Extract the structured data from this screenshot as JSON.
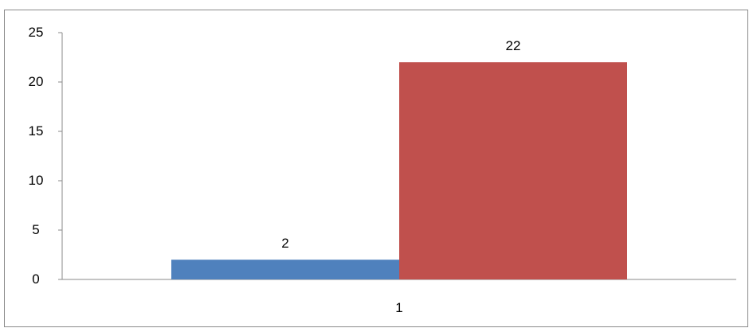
{
  "chart_data": {
    "type": "bar",
    "categories": [
      "1"
    ],
    "series": [
      {
        "values": [
          2
        ],
        "color": "#4f81bd"
      },
      {
        "values": [
          22
        ],
        "color": "#c0504d"
      }
    ],
    "data_labels": [
      "2",
      "22"
    ],
    "y_ticks": [
      "0",
      "5",
      "10",
      "15",
      "20",
      "25"
    ],
    "ylim": [
      0,
      25
    ],
    "grid": false,
    "legend": "none"
  }
}
